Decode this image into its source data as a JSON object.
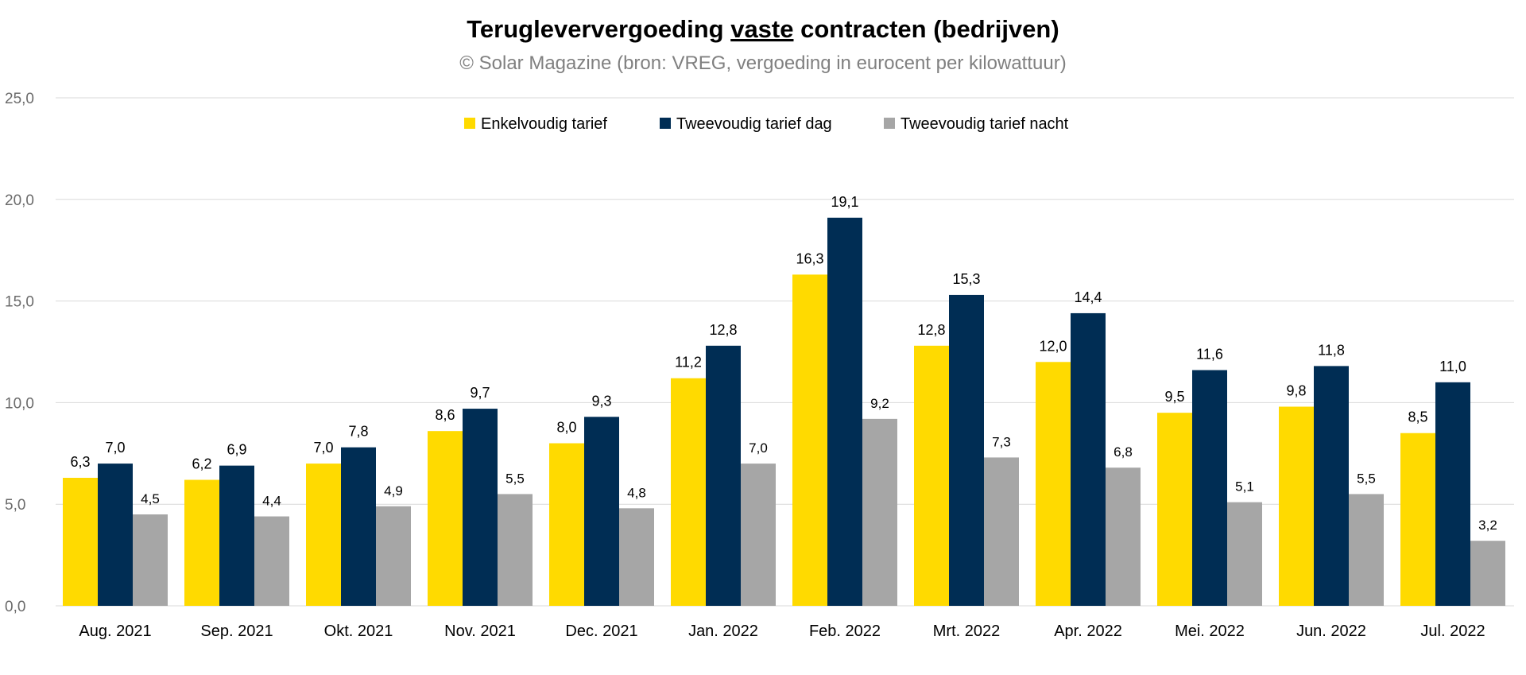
{
  "chart_data": {
    "type": "bar",
    "title_parts": [
      "Terugleververgoeding ",
      "vaste",
      " contracten (bedrijven)"
    ],
    "subtitle": "© Solar Magazine (bron: VREG, vergoeding in eurocent per kilowattuur)",
    "categories": [
      "Aug. 2021",
      "Sep. 2021",
      "Okt. 2021",
      "Nov. 2021",
      "Dec. 2021",
      "Jan. 2022",
      "Feb. 2022",
      "Mrt. 2022",
      "Apr. 2022",
      "Mei. 2022",
      "Jun. 2022",
      "Jul. 2022"
    ],
    "series": [
      {
        "name": "Enkelvoudig tarief",
        "color": "#FFDA00",
        "values": [
          6.3,
          6.2,
          7.0,
          8.6,
          8.0,
          11.2,
          16.3,
          12.8,
          12.0,
          9.5,
          9.8,
          8.5
        ],
        "labels": [
          "6,3",
          "6,2",
          "7,0",
          "8,6",
          "8,0",
          "11,2",
          "16,3",
          "12,8",
          "12,0",
          "9,5",
          "9,8",
          "8,5"
        ]
      },
      {
        "name": "Tweevoudig tarief dag",
        "color": "#002D54",
        "values": [
          7.0,
          6.9,
          7.8,
          9.7,
          9.3,
          12.8,
          19.1,
          15.3,
          14.4,
          11.6,
          11.8,
          11.0
        ],
        "labels": [
          "7,0",
          "6,9",
          "7,8",
          "9,7",
          "9,3",
          "12,8",
          "19,1",
          "15,3",
          "14,4",
          "11,6",
          "11,8",
          "11,0"
        ]
      },
      {
        "name": "Tweevoudig tarief nacht",
        "color": "#A6A6A6",
        "values": [
          4.5,
          4.4,
          4.9,
          5.5,
          4.8,
          7.0,
          9.2,
          7.3,
          6.8,
          5.1,
          5.5,
          3.2
        ],
        "labels": [
          "4,5",
          "4,4",
          "4,9",
          "5,5",
          "4,8",
          "7,0",
          "9,2",
          "7,3",
          "6,8",
          "5,1",
          "5,5",
          "3,2"
        ]
      }
    ],
    "ylim": [
      0,
      25
    ],
    "yticks": [
      0,
      5,
      10,
      15,
      20,
      25
    ],
    "ytick_labels": [
      "0,0",
      "5,0",
      "10,0",
      "15,0",
      "20,0",
      "25,0"
    ],
    "grid": true,
    "legend_position": "top-center"
  }
}
